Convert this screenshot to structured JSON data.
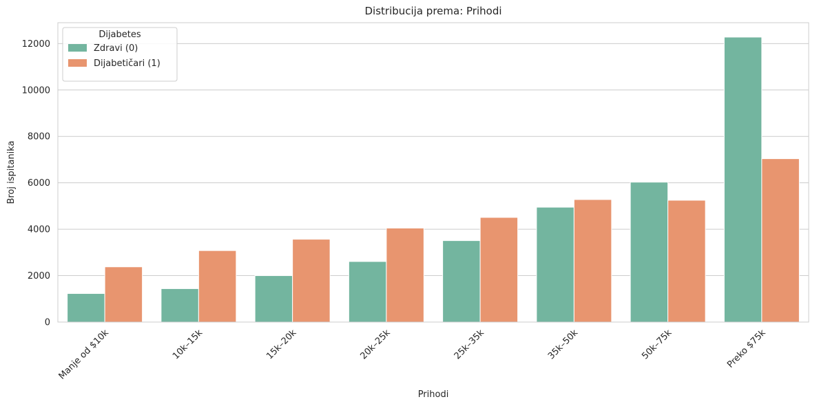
{
  "chart_data": {
    "type": "bar",
    "title": "Distribucija prema: Prihodi",
    "xlabel": "Prihodi",
    "ylabel": "Broj ispitanika",
    "categories": [
      "Manje od $10k",
      "10k–15k",
      "15k–20k",
      "20k–25k",
      "25k–35k",
      "35k–50k",
      "50k–75k",
      "Preko $75k"
    ],
    "series": [
      {
        "name": "Zdravi (0)",
        "color": "#73b59f",
        "values": [
          1230,
          1440,
          2000,
          2610,
          3510,
          4950,
          6030,
          12280
        ]
      },
      {
        "name": "Dijabetičari (1)",
        "color": "#e8956f",
        "values": [
          2380,
          3080,
          3570,
          4050,
          4510,
          5280,
          5250,
          7040
        ]
      }
    ],
    "ylim": [
      0,
      12900
    ],
    "yticks": [
      0,
      2000,
      4000,
      6000,
      8000,
      10000,
      12000
    ],
    "ytick_labels": [
      "0",
      "2000",
      "4000",
      "6000",
      "8000",
      "10000",
      "12000"
    ],
    "legend_title": "Dijabetes",
    "legend_position": "top-left",
    "grid": "horizontal",
    "grid_color": "#cccccc",
    "background": "#ffffff"
  }
}
